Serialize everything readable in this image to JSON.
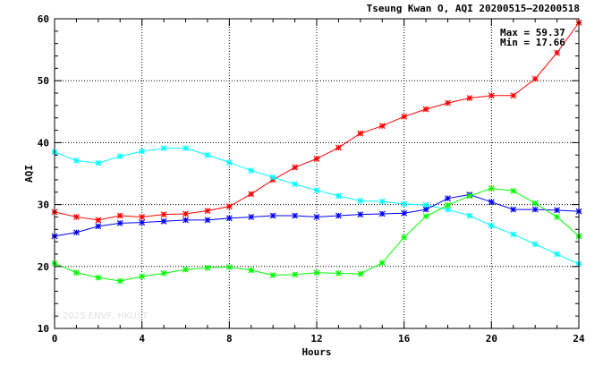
{
  "chart_data": {
    "type": "line",
    "title": "Tseung Kwan O, AQI 20200515–20200518",
    "xlabel": "Hours",
    "ylabel": "AQI",
    "xlim": [
      0,
      24
    ],
    "ylim": [
      10,
      60
    ],
    "x_ticks": [
      0,
      4,
      8,
      12,
      16,
      20,
      24
    ],
    "y_ticks": [
      10,
      20,
      30,
      40,
      50,
      60
    ],
    "grid": true,
    "annotations": [
      "Max = 59.37",
      "Min = 17.66"
    ],
    "watermark": "© 2025 ENVF, HKUST",
    "x": [
      0,
      1,
      2,
      3,
      4,
      5,
      6,
      7,
      8,
      9,
      10,
      11,
      12,
      13,
      14,
      15,
      16,
      17,
      18,
      19,
      20,
      21,
      22,
      23,
      24
    ],
    "series": [
      {
        "color": "#ff0000",
        "values": [
          28.8,
          28.0,
          27.5,
          28.2,
          28.0,
          28.4,
          28.5,
          29.0,
          29.7,
          31.7,
          34.0,
          36.0,
          37.4,
          39.2,
          41.5,
          42.7,
          44.2,
          45.4,
          46.4,
          47.2,
          47.6,
          47.6,
          50.3,
          54.5,
          59.37
        ]
      },
      {
        "color": "#00ffff",
        "values": [
          38.5,
          37.1,
          36.7,
          37.8,
          38.6,
          39.1,
          39.1,
          38.0,
          36.8,
          35.5,
          34.4,
          33.3,
          32.3,
          31.4,
          30.6,
          30.5,
          30.1,
          29.9,
          29.2,
          28.2,
          26.6,
          25.2,
          23.6,
          22.0,
          20.4
        ]
      },
      {
        "color": "#0000ff",
        "values": [
          24.9,
          25.5,
          26.5,
          27.0,
          27.1,
          27.3,
          27.5,
          27.5,
          27.8,
          28.0,
          28.2,
          28.2,
          28.0,
          28.2,
          28.4,
          28.5,
          28.6,
          29.2,
          31.0,
          31.6,
          30.4,
          29.2,
          29.2,
          29.1,
          28.9
        ]
      },
      {
        "color": "#00ff00",
        "values": [
          20.5,
          19.0,
          18.2,
          17.66,
          18.4,
          18.9,
          19.5,
          19.8,
          19.9,
          19.4,
          18.6,
          18.7,
          19.0,
          18.9,
          18.8,
          20.6,
          24.7,
          28.1,
          29.9,
          31.4,
          32.6,
          32.2,
          30.2,
          28.0,
          24.9
        ]
      }
    ]
  }
}
